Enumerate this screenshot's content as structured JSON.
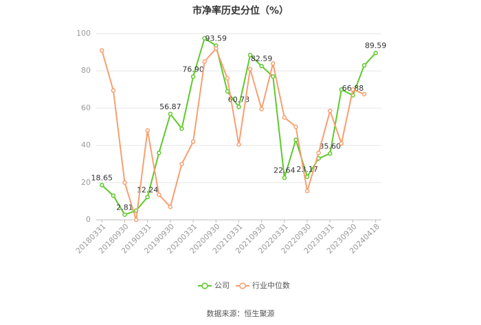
{
  "chart_data": {
    "type": "line",
    "title": "市净率历史分位（%）",
    "categories": [
      "20180331",
      null,
      "20180930",
      null,
      "20190331",
      null,
      "20190930",
      null,
      "20200331",
      null,
      "20200930",
      null,
      "20210331",
      null,
      "20210930",
      null,
      "20220331",
      null,
      "20220930",
      null,
      "20230331",
      null,
      "20230930",
      null,
      "20240418"
    ],
    "series": [
      {
        "name": "公司",
        "color": "#5cc928",
        "values": [
          18.65,
          13,
          2.81,
          5,
          12.24,
          36,
          56.87,
          49,
          76.9,
          97.5,
          93.59,
          69,
          60.73,
          88.5,
          82.59,
          77,
          22.64,
          43,
          23.17,
          33,
          35.6,
          70,
          66.88,
          83,
          89.59
        ],
        "value_labels": [
          "18.65",
          null,
          "2.81",
          null,
          "12.24",
          null,
          "56.87",
          null,
          "76.90",
          null,
          "93.59",
          null,
          "60.73",
          null,
          "82.59",
          null,
          "22.64",
          null,
          "23.17",
          null,
          "35.60",
          null,
          "66.88",
          null,
          "89.59"
        ]
      },
      {
        "name": "行业中位数",
        "color": "#f79e6e",
        "values": [
          91,
          69.5,
          20,
          0,
          48,
          13.5,
          7,
          30,
          42,
          85,
          92,
          76,
          40.5,
          81,
          59.5,
          84,
          55,
          50,
          15.5,
          36,
          58.5,
          41,
          70,
          67.5,
          null
        ]
      }
    ],
    "ylim": [
      0,
      100
    ],
    "yticks": [
      0,
      20,
      40,
      60,
      80,
      100
    ],
    "grid": true,
    "source": "数据来源：恒生聚源"
  }
}
